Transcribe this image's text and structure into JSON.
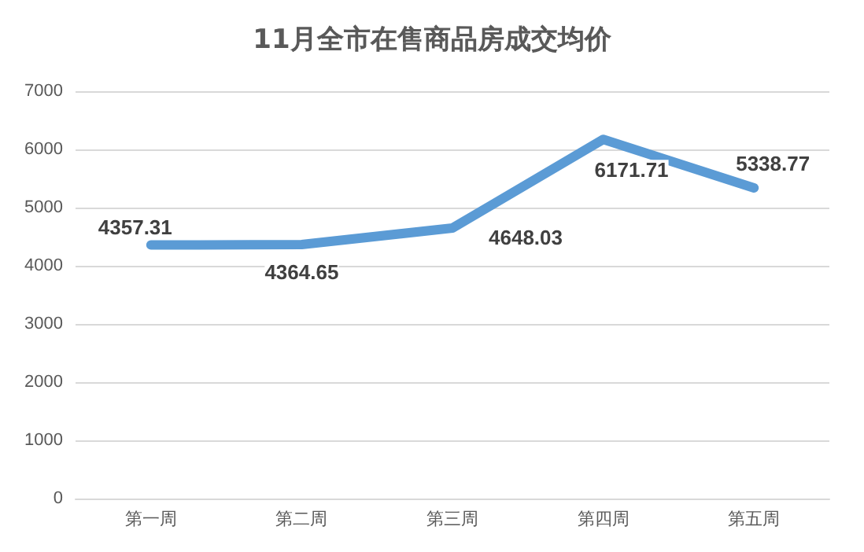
{
  "chart_data": {
    "type": "line",
    "title": "11月全市在售商品房成交均价",
    "categories": [
      "第一周",
      "第二周",
      "第三周",
      "第四周",
      "第五周"
    ],
    "series": [
      {
        "color": "#5b9bd5",
        "values": [
          4357.31,
          4364.65,
          4648.03,
          6171.71,
          5338.77
        ]
      }
    ],
    "ylim": [
      0,
      7000
    ],
    "yticks": [
      0,
      1000,
      2000,
      3000,
      4000,
      5000,
      6000,
      7000
    ],
    "grid": "y",
    "marker": "none",
    "line_style": "solid",
    "data_labels": true
  }
}
